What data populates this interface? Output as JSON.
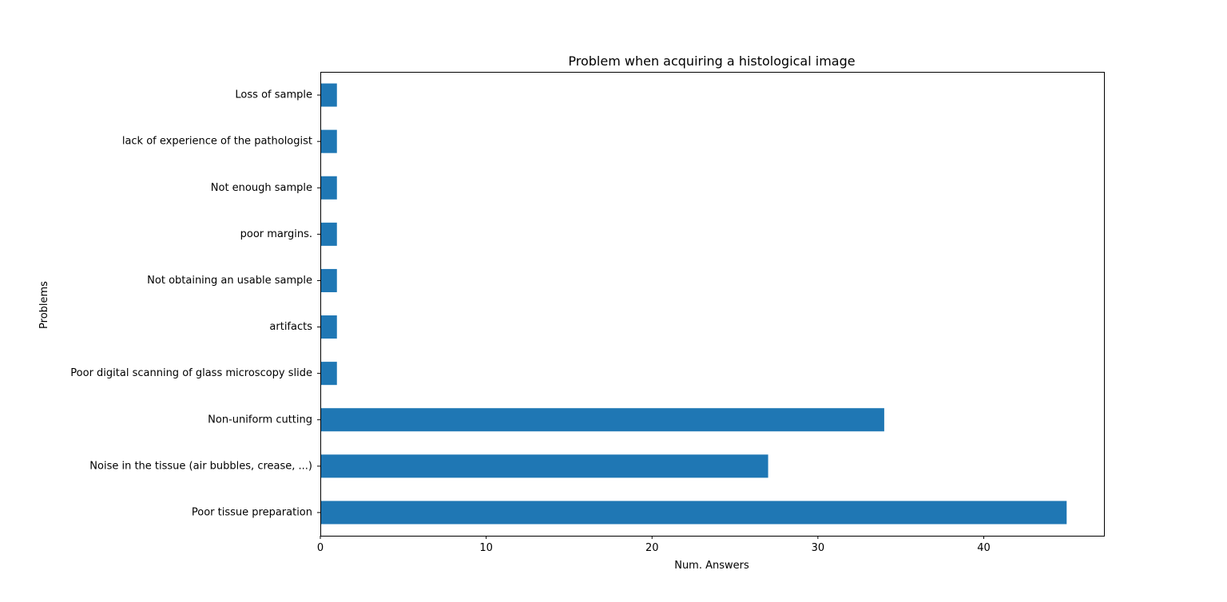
{
  "chart_data": {
    "type": "bar",
    "orientation": "horizontal",
    "title": "Problem when acquiring a histological image",
    "xlabel": "Num. Answers",
    "ylabel": "Problems",
    "categories": [
      "Poor tissue preparation",
      "Noise in the tissue (air bubbles, crease, ...)",
      "Non-uniform cutting",
      "Poor digital scanning of glass microscopy slide",
      "artifacts",
      "Not obtaining an usable sample",
      "poor margins.",
      "Not enough sample",
      "lack of experience of the pathologist",
      "Loss of sample"
    ],
    "values": [
      45,
      27,
      34,
      1,
      1,
      1,
      1,
      1,
      1,
      1
    ],
    "xlim": [
      0,
      47.25
    ],
    "xticks": [
      0,
      10,
      20,
      30,
      40
    ],
    "grid": false,
    "legend": false,
    "bar_color": "#1f77b4"
  }
}
